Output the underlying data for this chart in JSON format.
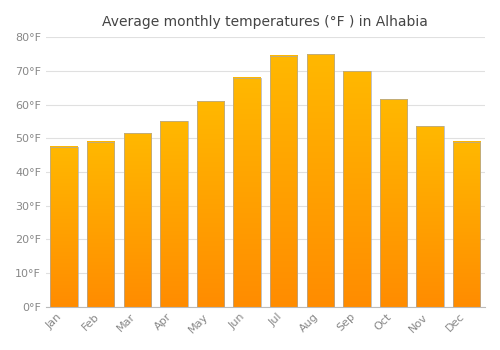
{
  "title": "Average monthly temperatures (°F ) in Alhabia",
  "months": [
    "Jan",
    "Feb",
    "Mar",
    "Apr",
    "May",
    "Jun",
    "Jul",
    "Aug",
    "Sep",
    "Oct",
    "Nov",
    "Dec"
  ],
  "values": [
    47.5,
    49.0,
    51.5,
    55.0,
    61.0,
    68.0,
    74.5,
    75.0,
    70.0,
    61.5,
    53.5,
    49.0
  ],
  "bar_color_top": "#FFB800",
  "bar_color_bottom": "#FF8C00",
  "ylim": [
    0,
    80
  ],
  "yticks": [
    0,
    10,
    20,
    30,
    40,
    50,
    60,
    70,
    80
  ],
  "ytick_labels": [
    "0°F",
    "10°F",
    "20°F",
    "30°F",
    "40°F",
    "50°F",
    "60°F",
    "70°F",
    "80°F"
  ],
  "background_color": "#FFFFFF",
  "grid_color": "#E0E0E0",
  "title_fontsize": 10,
  "tick_fontsize": 8,
  "bar_edge_color": "#AAAAAA",
  "bar_width": 0.75
}
